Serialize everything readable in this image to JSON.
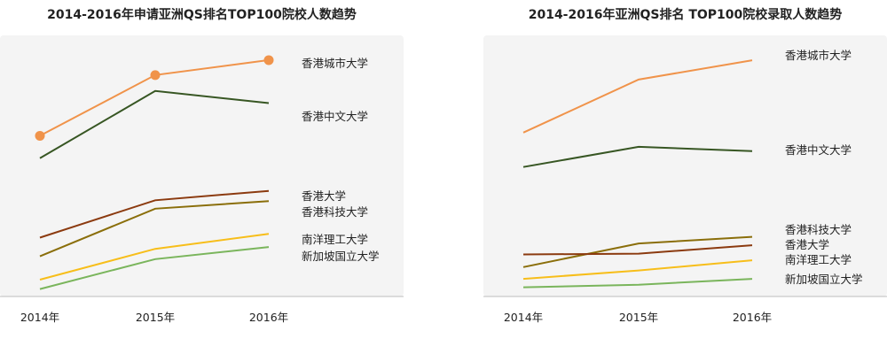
{
  "chart_data": [
    {
      "type": "line",
      "title": "2014-2016年申请亚洲QS排名TOP100院校人数趋势",
      "categories": [
        "2014年",
        "2015年",
        "2016年"
      ],
      "series": [
        {
          "name": "香港城市大学",
          "values": [
            172,
            237,
            253
          ],
          "color": "#f0934a",
          "markers": true
        },
        {
          "name": "香港中文大学",
          "values": [
            148,
            220,
            207
          ],
          "color": "#375623"
        },
        {
          "name": "香港大学",
          "values": [
            63,
            103,
            113
          ],
          "color": "#8b3a0f"
        },
        {
          "name": "香港科技大学",
          "values": [
            43,
            94,
            102
          ],
          "color": "#8a6e0a"
        },
        {
          "name": "南洋理工大学",
          "values": [
            18,
            51,
            67
          ],
          "color": "#f7be1a"
        },
        {
          "name": "新加坡国立大学",
          "values": [
            8,
            40,
            53
          ],
          "color": "#7ab55c"
        }
      ],
      "ylim": [
        0,
        270
      ],
      "xlabel": "",
      "ylabel": "",
      "grid": false,
      "legend": "inline labels at right"
    },
    {
      "type": "line",
      "title": "2014-2016年亚洲QS排名 TOP100院校录取人数趋势",
      "categories": [
        "2014年",
        "2015年",
        "2016年"
      ],
      "series": [
        {
          "name": "香港城市大学",
          "values": [
            195,
            258,
            281
          ],
          "color": "#f0934a"
        },
        {
          "name": "香港中文大学",
          "values": [
            154,
            178,
            173
          ],
          "color": "#375623"
        },
        {
          "name": "香港科技大学",
          "values": [
            35,
            63,
            71
          ],
          "color": "#8a6e0a"
        },
        {
          "name": "香港大学",
          "values": [
            50,
            51,
            61
          ],
          "color": "#8b3a0f"
        },
        {
          "name": "南洋理工大学",
          "values": [
            21,
            31,
            43
          ],
          "color": "#f7be1a"
        },
        {
          "name": "新加坡国立大学",
          "values": [
            11,
            14,
            21
          ],
          "color": "#7ab55c"
        }
      ],
      "ylim": [
        0,
        300
      ],
      "xlabel": "",
      "ylabel": "",
      "grid": false,
      "legend": "inline labels at right"
    }
  ]
}
